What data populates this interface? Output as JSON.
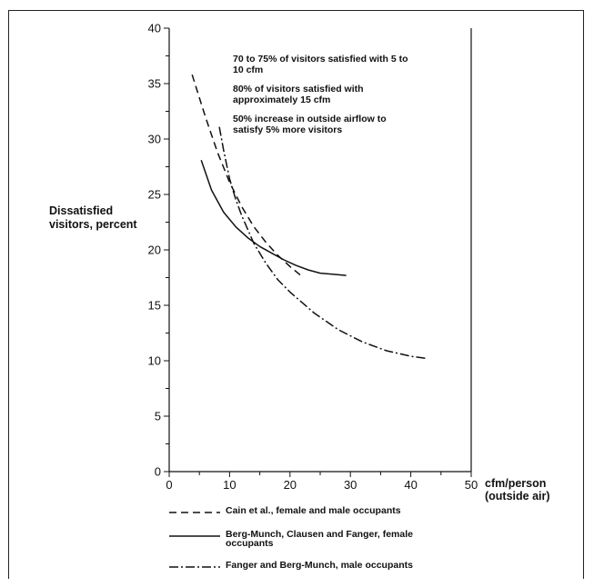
{
  "chart_data": {
    "type": "line",
    "title": "",
    "xlabel": "cfm/person (outside air)",
    "xlabel_lines": [
      "cfm/person",
      "(outside air)"
    ],
    "ylabel": "Dissatisfied visitors, percent",
    "ylabel_lines": [
      "Dissatisfied",
      "visitors, percent"
    ],
    "xlim": [
      0,
      50
    ],
    "ylim": [
      0,
      40
    ],
    "x_ticks": [
      0,
      10,
      20,
      30,
      40,
      50
    ],
    "y_ticks": [
      0,
      5,
      10,
      15,
      20,
      25,
      30,
      35,
      40
    ],
    "grid": false,
    "legend_position": "bottom",
    "annotations": [
      "70 to 75% of visitors satisfied with 5 to 10 cfm",
      "80% of visitors satisfied with approximately 15 cfm",
      "50% increase in outside airflow to satisfy 5% more visitors"
    ],
    "series": [
      {
        "name": "Cain et al., female and male occupants",
        "style": "dashed",
        "x": [
          3.8,
          6,
          8,
          10,
          12,
          14,
          16,
          18,
          20,
          22
        ],
        "y": [
          35.8,
          32,
          28.8,
          26.1,
          23.9,
          22.1,
          20.7,
          19.5,
          18.5,
          17.6
        ]
      },
      {
        "name": "Berg-Munch, Clausen and Fanger, female occupants",
        "style": "solid",
        "x": [
          5.3,
          7,
          9,
          11,
          13,
          15,
          17,
          19,
          21,
          23,
          25,
          27,
          29.3
        ],
        "y": [
          28.1,
          25.4,
          23.4,
          22.1,
          21.1,
          20.3,
          19.7,
          19.1,
          18.6,
          18.2,
          17.9,
          17.8,
          17.7
        ]
      },
      {
        "name": "Fanger and Berg-Munch, male occupants",
        "style": "dashdot",
        "x": [
          8.3,
          9,
          10,
          11,
          12,
          14,
          16,
          18,
          20,
          24,
          28,
          32,
          36,
          40,
          42.8
        ],
        "y": [
          31.1,
          29,
          26.4,
          24.6,
          23.1,
          20.6,
          18.8,
          17.3,
          16.2,
          14.3,
          12.8,
          11.7,
          10.9,
          10.4,
          10.2
        ]
      }
    ],
    "colors": {
      "line": "#111111",
      "axis": "#111111"
    }
  }
}
